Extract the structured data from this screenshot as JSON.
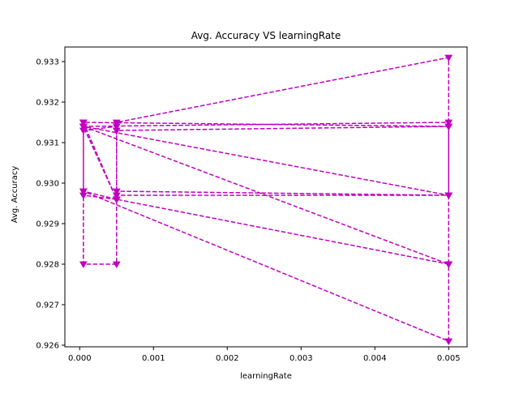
{
  "chart_data": {
    "type": "line",
    "title": "Avg. Accuracy VS learningRate",
    "xlabel": "learningRate",
    "ylabel": "Avg. Accuracy",
    "xlim": [
      -0.000201,
      0.00525
    ],
    "ylim": [
      0.92596,
      0.93336
    ],
    "xticks": [
      0.0,
      0.001,
      0.002,
      0.003,
      0.004,
      0.005
    ],
    "xtick_labels": [
      "0.000",
      "0.001",
      "0.002",
      "0.003",
      "0.004",
      "0.005"
    ],
    "yticks": [
      0.926,
      0.927,
      0.928,
      0.929,
      0.93,
      0.931,
      0.932,
      0.933
    ],
    "ytick_labels": [
      "0.926",
      "0.927",
      "0.928",
      "0.929",
      "0.930",
      "0.931",
      "0.932",
      "0.933"
    ],
    "grid": false,
    "color": "#bf00bf",
    "line_style": "dashed",
    "marker": "triangle-down",
    "series": [
      {
        "x": [
          5e-05,
          5e-05,
          0.0005,
          0.0005,
          0.005,
          0.005,
          5e-05,
          5e-05,
          0.0005,
          0.0005,
          0.005,
          0.005,
          5e-05,
          5e-05,
          0.0005,
          0.0005,
          0.005,
          0.005,
          5e-05,
          5e-05,
          0.0005,
          0.0005,
          0.005,
          0.005,
          5e-05,
          5e-05,
          0.0005,
          0.0005,
          0.005,
          0.005,
          5e-05,
          5e-05,
          0.0005
        ],
        "y": [
          0.9314,
          0.928,
          0.928,
          0.9313,
          0.9314,
          0.9297,
          0.9314,
          0.9298,
          0.9296,
          0.9315,
          0.9331,
          0.928,
          0.9314,
          0.9297,
          0.9296,
          0.9297,
          0.9297,
          0.9315,
          0.9314,
          0.9313,
          0.9314,
          0.9296,
          0.928,
          0.9261,
          0.9298,
          0.9315,
          0.9296,
          0.9298,
          0.9297,
          0.9314,
          0.9315,
          0.9314,
          0.9296
        ]
      }
    ]
  }
}
